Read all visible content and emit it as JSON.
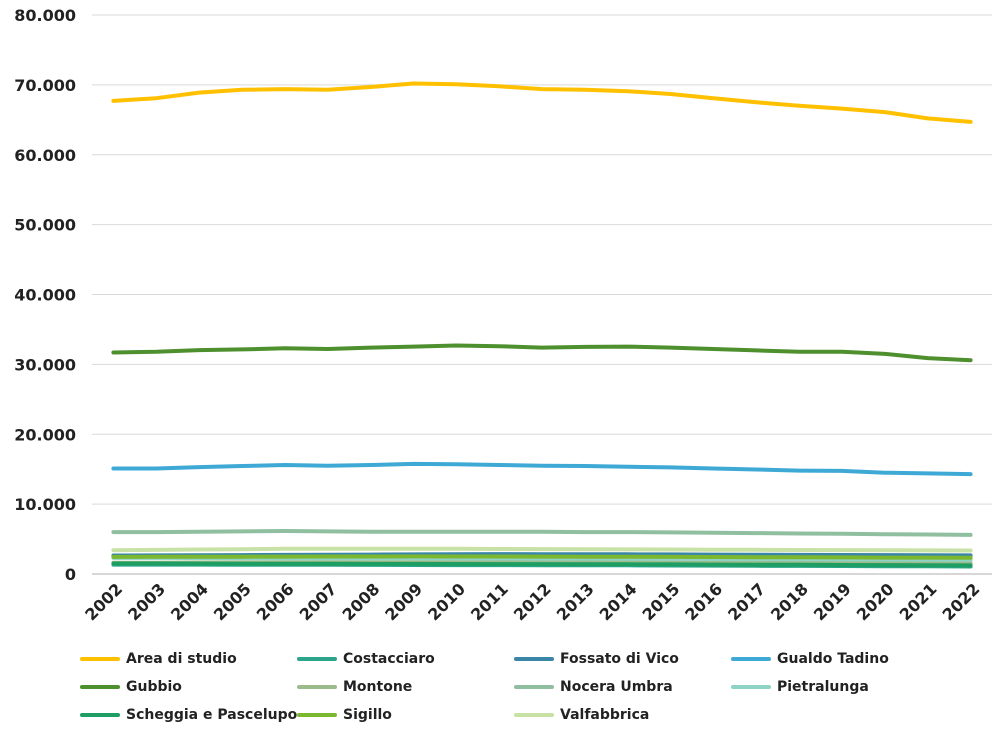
{
  "chart_data": {
    "type": "line",
    "title": "",
    "xlabel": "",
    "ylabel": "",
    "x": [
      "2002",
      "2003",
      "2004",
      "2005",
      "2006",
      "2007",
      "2008",
      "2009",
      "2010",
      "2011",
      "2012",
      "2013",
      "2014",
      "2015",
      "2016",
      "2017",
      "2018",
      "2019",
      "2020",
      "2021",
      "2022"
    ],
    "ylim": [
      0,
      80000
    ],
    "yticks": [
      0,
      10000,
      20000,
      30000,
      40000,
      50000,
      60000,
      70000,
      80000
    ],
    "ytick_labels": [
      "0",
      "10.000",
      "20.000",
      "30.000",
      "40.000",
      "50.000",
      "60.000",
      "70.000",
      "80.000"
    ],
    "grid": true,
    "legend_position": "bottom",
    "series": [
      {
        "name": "Area di studio",
        "color": "#FFC000",
        "values": [
          67700,
          68100,
          68900,
          69300,
          69400,
          69300,
          69700,
          70200,
          70100,
          69800,
          69400,
          69300,
          69100,
          68700,
          68100,
          67500,
          67000,
          66600,
          66100,
          65200,
          64700
        ]
      },
      {
        "name": "Costacciaro",
        "color": "#2BA58A",
        "values": [
          1350,
          1350,
          1340,
          1330,
          1320,
          1310,
          1300,
          1290,
          1280,
          1270,
          1260,
          1250,
          1240,
          1220,
          1200,
          1180,
          1160,
          1140,
          1120,
          1100,
          1080
        ]
      },
      {
        "name": "Fossato di Vico",
        "color": "#3A86A8",
        "values": [
          2650,
          2660,
          2680,
          2700,
          2730,
          2750,
          2780,
          2800,
          2830,
          2850,
          2840,
          2830,
          2820,
          2800,
          2780,
          2760,
          2740,
          2720,
          2700,
          2680,
          2660
        ]
      },
      {
        "name": "Gualdo Tadino",
        "color": "#3FA9D6",
        "values": [
          15100,
          15100,
          15300,
          15450,
          15600,
          15500,
          15600,
          15750,
          15700,
          15600,
          15500,
          15450,
          15350,
          15250,
          15100,
          14950,
          14800,
          14750,
          14500,
          14400,
          14300
        ]
      },
      {
        "name": "Gubbio",
        "color": "#4E8F2E",
        "values": [
          31700,
          31800,
          32050,
          32150,
          32300,
          32200,
          32400,
          32550,
          32700,
          32600,
          32400,
          32500,
          32550,
          32400,
          32200,
          32000,
          31800,
          31800,
          31500,
          30900,
          30600
        ]
      },
      {
        "name": "Montone",
        "color": "#9BBB8A",
        "values": [
          1600,
          1620,
          1640,
          1660,
          1680,
          1690,
          1690,
          1690,
          1680,
          1670,
          1660,
          1650,
          1640,
          1630,
          1620,
          1610,
          1600,
          1590,
          1580,
          1570,
          1560
        ]
      },
      {
        "name": "Nocera Umbra",
        "color": "#8FBF9F",
        "values": [
          6000,
          6000,
          6050,
          6100,
          6150,
          6100,
          6050,
          6050,
          6050,
          6050,
          6050,
          6000,
          6000,
          5950,
          5900,
          5850,
          5800,
          5750,
          5700,
          5650,
          5600
        ]
      },
      {
        "name": "Pietralunga",
        "color": "#8ED3C5",
        "values": [
          2300,
          2300,
          2290,
          2280,
          2270,
          2260,
          2250,
          2240,
          2230,
          2220,
          2210,
          2200,
          2190,
          2170,
          2150,
          2130,
          2110,
          2090,
          2070,
          2050,
          2030
        ]
      },
      {
        "name": "Scheggia e Pascelupo",
        "color": "#1F9E63",
        "values": [
          1500,
          1500,
          1490,
          1480,
          1470,
          1460,
          1450,
          1440,
          1430,
          1420,
          1410,
          1400,
          1390,
          1370,
          1350,
          1330,
          1310,
          1290,
          1270,
          1250,
          1230
        ]
      },
      {
        "name": "Sigillo",
        "color": "#7CB82F",
        "values": [
          2450,
          2460,
          2470,
          2480,
          2490,
          2500,
          2510,
          2520,
          2510,
          2500,
          2490,
          2480,
          2470,
          2450,
          2430,
          2410,
          2390,
          2370,
          2350,
          2340,
          2330
        ]
      },
      {
        "name": "Valfabbrica",
        "color": "#C7E2A4",
        "values": [
          3400,
          3450,
          3500,
          3550,
          3600,
          3600,
          3600,
          3600,
          3600,
          3580,
          3560,
          3540,
          3520,
          3500,
          3480,
          3460,
          3440,
          3420,
          3400,
          3380,
          3360
        ]
      }
    ]
  }
}
